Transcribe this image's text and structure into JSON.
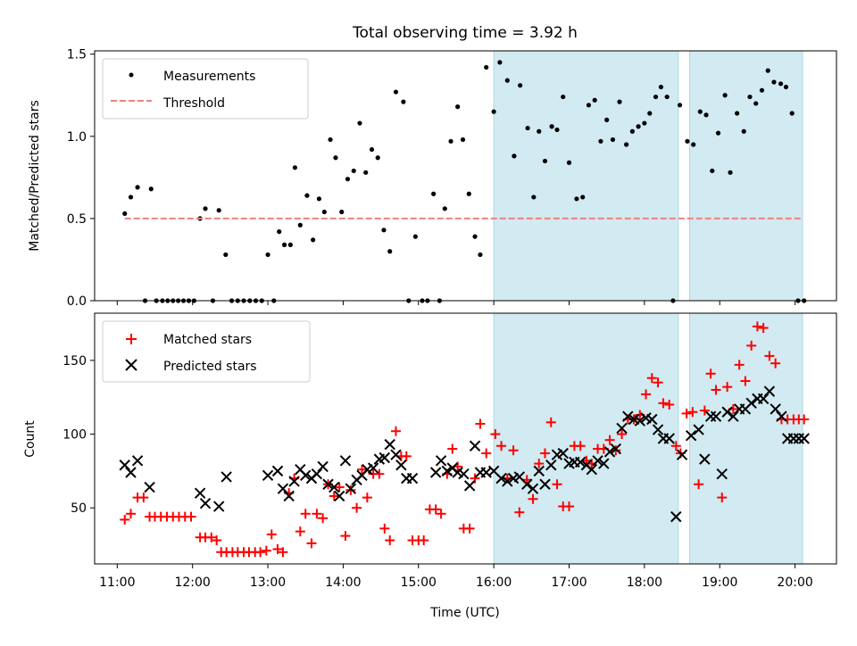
{
  "chart_data": {
    "title": "Total observing time = 3.92 h",
    "xlabel": "Time (UTC)",
    "x_unit": "hours UTC",
    "xlim": [
      10.7,
      20.55
    ],
    "xticks": [
      11,
      12,
      13,
      14,
      15,
      16,
      17,
      18,
      19,
      20
    ],
    "xtick_labels": [
      "11:00",
      "12:00",
      "13:00",
      "14:00",
      "15:00",
      "16:00",
      "17:00",
      "18:00",
      "19:00",
      "20:00"
    ],
    "shaded_intervals": [
      [
        16.0,
        18.45
      ],
      [
        18.6,
        20.1
      ]
    ],
    "shade_color": "#add8e6",
    "panels": [
      {
        "type": "scatter",
        "ylabel": "Matched/Predicted stars",
        "ylim": [
          0,
          1.52
        ],
        "yticks": [
          0.0,
          0.5,
          1.0,
          1.5
        ],
        "ytick_labels": [
          "0.0",
          "0.5",
          "1.0",
          "1.5"
        ],
        "legend_position": "top-left",
        "series": [
          {
            "name": "Measurements",
            "marker": "dot",
            "color": "#000000",
            "x": [
              11.1,
              11.18,
              11.27,
              11.37,
              11.45,
              11.52,
              11.6,
              11.67,
              11.74,
              11.81,
              11.88,
              11.95,
              12.02,
              12.1,
              12.17,
              12.27,
              12.35,
              12.44,
              12.52,
              12.6,
              12.68,
              12.76,
              12.84,
              12.92,
              13.0,
              13.08,
              13.15,
              13.22,
              13.3,
              13.36,
              13.43,
              13.52,
              13.6,
              13.68,
              13.75,
              13.83,
              13.9,
              13.98,
              14.06,
              14.14,
              14.22,
              14.3,
              14.38,
              14.46,
              14.54,
              14.62,
              14.7,
              14.8,
              14.87,
              14.96,
              15.05,
              15.12,
              15.2,
              15.28,
              15.35,
              15.43,
              15.52,
              15.59,
              15.67,
              15.75,
              15.82,
              15.9,
              16.0,
              16.08,
              16.18,
              16.27,
              16.35,
              16.45,
              16.53,
              16.6,
              16.68,
              16.77,
              16.84,
              16.92,
              17.0,
              17.1,
              17.18,
              17.26,
              17.34,
              17.42,
              17.5,
              17.58,
              17.67,
              17.76,
              17.84,
              17.92,
              18.0,
              18.07,
              18.15,
              18.22,
              18.3,
              18.38,
              18.47,
              18.57,
              18.65,
              18.74,
              18.82,
              18.9,
              18.98,
              19.07,
              19.14,
              19.23,
              19.32,
              19.4,
              19.48,
              19.56,
              19.64,
              19.72,
              19.81,
              19.88,
              19.96,
              20.04,
              20.12
            ],
            "y": [
              0.53,
              0.63,
              0.69,
              0.0,
              0.68,
              0.0,
              0.0,
              0.0,
              0.0,
              0.0,
              0.0,
              0.0,
              0.0,
              0.5,
              0.56,
              0.0,
              0.55,
              0.28,
              0.0,
              0.0,
              0.0,
              0.0,
              0.0,
              0.0,
              0.28,
              0.0,
              0.42,
              0.34,
              0.34,
              0.81,
              0.46,
              0.64,
              0.37,
              0.62,
              0.54,
              0.98,
              0.87,
              0.54,
              0.74,
              0.79,
              1.08,
              0.78,
              0.92,
              0.87,
              0.43,
              0.3,
              1.27,
              1.21,
              0.0,
              0.39,
              0.0,
              0.0,
              0.65,
              0.0,
              0.56,
              0.97,
              1.18,
              0.98,
              0.65,
              0.39,
              0.28,
              1.42,
              1.15,
              1.45,
              1.34,
              0.88,
              1.31,
              1.05,
              0.63,
              1.03,
              0.85,
              1.06,
              1.04,
              1.24,
              0.84,
              0.62,
              0.63,
              1.19,
              1.22,
              0.97,
              1.1,
              0.98,
              1.21,
              0.95,
              1.03,
              1.06,
              1.08,
              1.14,
              1.24,
              1.3,
              1.24,
              0.0,
              1.19,
              0.97,
              0.95,
              1.15,
              1.13,
              0.79,
              1.02,
              1.25,
              0.78,
              1.14,
              1.03,
              1.24,
              1.2,
              1.28,
              1.4,
              1.33,
              1.32,
              1.3,
              1.14,
              0.0,
              0.0
            ]
          },
          {
            "name": "Threshold",
            "marker": "dashed-line",
            "color": "#f08080",
            "x": [
              11.1,
              20.1
            ],
            "y": [
              0.5,
              0.5
            ]
          }
        ]
      },
      {
        "type": "scatter",
        "ylabel": "Count",
        "ylim": [
          12,
          182
        ],
        "yticks": [
          50,
          100,
          150
        ],
        "ytick_labels": [
          "50",
          "100",
          "150"
        ],
        "legend_position": "top-left",
        "series": [
          {
            "name": "Matched stars",
            "marker": "plus",
            "color": "#ff0000",
            "x": [
              11.1,
              11.18,
              11.27,
              11.35,
              11.43,
              11.5,
              11.58,
              11.66,
              11.74,
              11.82,
              11.9,
              11.98,
              12.1,
              12.17,
              12.25,
              12.32,
              12.38,
              12.45,
              12.53,
              12.6,
              12.68,
              12.75,
              12.83,
              12.9,
              12.98,
              13.05,
              13.13,
              13.2,
              13.28,
              13.35,
              13.43,
              13.5,
              13.58,
              13.65,
              13.73,
              13.8,
              13.88,
              13.95,
              14.03,
              14.1,
              14.18,
              14.25,
              14.32,
              14.4,
              14.48,
              14.55,
              14.62,
              14.7,
              14.77,
              14.84,
              14.92,
              15.0,
              15.07,
              15.15,
              15.23,
              15.3,
              15.38,
              15.45,
              15.52,
              15.6,
              15.68,
              15.75,
              15.82,
              15.9,
              16.02,
              16.1,
              16.18,
              16.26,
              16.34,
              16.44,
              16.52,
              16.6,
              16.68,
              16.76,
              16.84,
              16.92,
              17.0,
              17.07,
              17.15,
              17.23,
              17.3,
              17.38,
              17.46,
              17.54,
              17.62,
              17.7,
              17.78,
              17.86,
              17.94,
              18.02,
              18.1,
              18.18,
              18.25,
              18.33,
              18.42,
              18.48,
              18.56,
              18.64,
              18.72,
              18.8,
              18.88,
              18.95,
              19.03,
              19.1,
              19.18,
              19.26,
              19.34,
              19.42,
              19.5,
              19.58,
              19.66,
              19.74,
              19.82,
              19.9,
              19.98,
              20.05,
              20.12
            ],
            "y": [
              42,
              46,
              57,
              57,
              44,
              44,
              44,
              44,
              44,
              44,
              44,
              44,
              30,
              30,
              30,
              28,
              20,
              20,
              20,
              20,
              20,
              20,
              20,
              20,
              21,
              32,
              22,
              20,
              60,
              70,
              34,
              46,
              26,
              46,
              43,
              66,
              58,
              64,
              31,
              62,
              50,
              76,
              57,
              73,
              73,
              36,
              28,
              102,
              85,
              85,
              28,
              28,
              28,
              49,
              49,
              46,
              73,
              90,
              78,
              36,
              36,
              70,
              107,
              87,
              100,
              92,
              70,
              89,
              47,
              69,
              56,
              80,
              87,
              108,
              66,
              51,
              51,
              92,
              92,
              82,
              80,
              90,
              90,
              96,
              89,
              100,
              110,
              110,
              113,
              127,
              138,
              135,
              121,
              120,
              92,
              87,
              114,
              115,
              66,
              116,
              141,
              130,
              57,
              132,
              117,
              147,
              136,
              160,
              173,
              172,
              153,
              148,
              110,
              110,
              110,
              110,
              110
            ]
          },
          {
            "name": "Predicted stars",
            "marker": "x",
            "color": "#000000",
            "x": [
              11.1,
              11.18,
              11.27,
              11.43,
              12.1,
              12.17,
              12.35,
              12.45,
              13.0,
              13.13,
              13.2,
              13.28,
              13.35,
              13.43,
              13.5,
              13.58,
              13.65,
              13.73,
              13.8,
              13.88,
              13.95,
              14.03,
              14.1,
              14.18,
              14.25,
              14.32,
              14.4,
              14.48,
              14.55,
              14.62,
              14.7,
              14.77,
              14.84,
              14.92,
              15.23,
              15.3,
              15.38,
              15.45,
              15.52,
              15.6,
              15.68,
              15.75,
              15.82,
              15.9,
              16.0,
              16.1,
              16.18,
              16.26,
              16.34,
              16.44,
              16.52,
              16.6,
              16.68,
              16.76,
              16.84,
              16.92,
              17.0,
              17.07,
              17.15,
              17.23,
              17.3,
              17.38,
              17.46,
              17.54,
              17.62,
              17.7,
              17.78,
              17.86,
              17.94,
              18.02,
              18.1,
              18.18,
              18.25,
              18.33,
              18.42,
              18.5,
              18.62,
              18.72,
              18.8,
              18.88,
              18.95,
              19.03,
              19.1,
              19.18,
              19.26,
              19.34,
              19.42,
              19.5,
              19.58,
              19.66,
              19.74,
              19.82,
              19.9,
              19.98,
              20.05,
              20.12
            ],
            "y": [
              79,
              74,
              82,
              64,
              60,
              53,
              51,
              71,
              72,
              75,
              63,
              58,
              68,
              76,
              72,
              70,
              73,
              78,
              66,
              64,
              58,
              82,
              63,
              69,
              72,
              76,
              77,
              83,
              84,
              93,
              86,
              79,
              70,
              70,
              74,
              82,
              75,
              77,
              74,
              73,
              65,
              92,
              74,
              74,
              75,
              70,
              68,
              70,
              71,
              66,
              63,
              75,
              66,
              79,
              86,
              87,
              80,
              81,
              81,
              79,
              76,
              82,
              80,
              88,
              90,
              104,
              112,
              110,
              109,
              111,
              110,
              103,
              97,
              97,
              44,
              86,
              99,
              103,
              83,
              112,
              112,
              73,
              115,
              112,
              117,
              117,
              121,
              124,
              124,
              129,
              117,
              112,
              97,
              97,
              97,
              97
            ]
          }
        ]
      }
    ]
  }
}
